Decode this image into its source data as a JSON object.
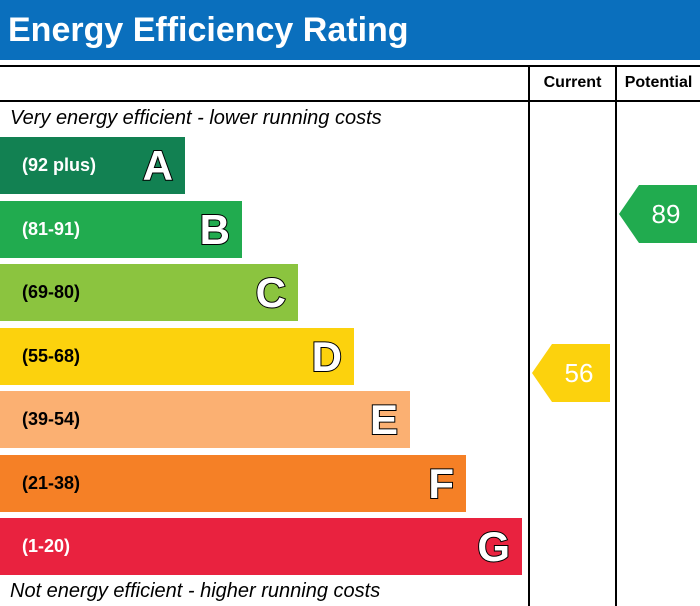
{
  "header": {
    "title": "Energy Efficiency Rating"
  },
  "columns": {
    "current": "Current",
    "potential": "Potential"
  },
  "captions": {
    "top": "Very energy efficient - lower running costs",
    "bottom": "Not energy efficient - higher running costs"
  },
  "chart_data": {
    "type": "bar",
    "categories": [
      "A",
      "B",
      "C",
      "D",
      "E",
      "F",
      "G"
    ],
    "bands": [
      {
        "letter": "A",
        "range": "(92 plus)",
        "min": 92,
        "max": 100,
        "color": "#128152"
      },
      {
        "letter": "B",
        "range": "(81-91)",
        "min": 81,
        "max": 91,
        "color": "#21ab4f"
      },
      {
        "letter": "C",
        "range": "(69-80)",
        "min": 69,
        "max": 80,
        "color": "#8bc43f"
      },
      {
        "letter": "D",
        "range": "(55-68)",
        "min": 55,
        "max": 68,
        "color": "#fcd20d"
      },
      {
        "letter": "E",
        "range": "(39-54)",
        "min": 39,
        "max": 54,
        "color": "#fbb072"
      },
      {
        "letter": "F",
        "range": "(21-38)",
        "min": 21,
        "max": 38,
        "color": "#f58026"
      },
      {
        "letter": "G",
        "range": "(1-20)",
        "min": 1,
        "max": 20,
        "color": "#e9223f"
      }
    ],
    "ratings": [
      {
        "column": "current",
        "value": 56,
        "band": "D",
        "color": "#fcd20d"
      },
      {
        "column": "potential",
        "value": 89,
        "band": "B",
        "color": "#21ab4f"
      }
    ]
  }
}
